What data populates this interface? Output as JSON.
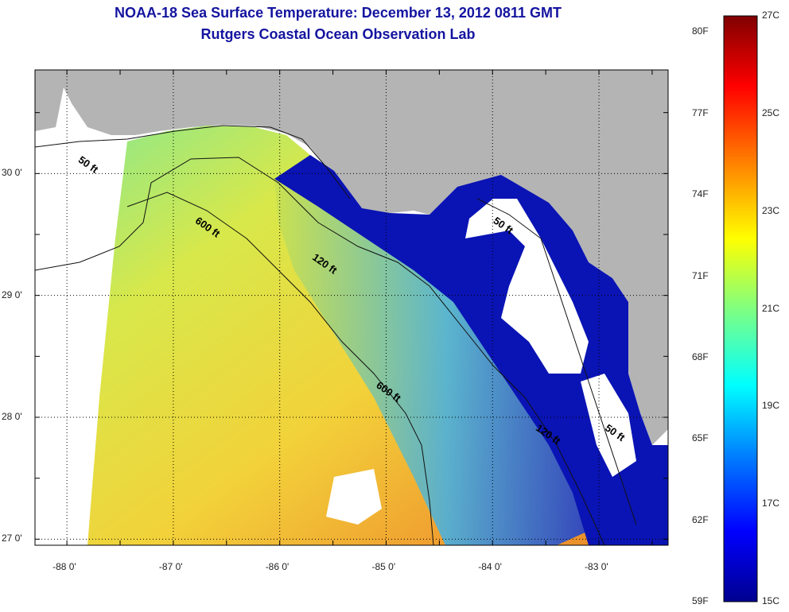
{
  "title": "NOAA-18 Sea Surface Temperature:  December 13, 2012 0811 GMT",
  "subtitle": "Rutgers Coastal Ocean Observation Lab",
  "map": {
    "lat_labels": [
      "30 0'",
      "29 0'",
      "28 0'",
      "27 0'"
    ],
    "lon_labels": [
      "-88 0'",
      "-87 0'",
      "-86 0'",
      "-85 0'",
      "-84 0'",
      "-83 0'"
    ],
    "lat_range": [
      26.95,
      30.85
    ],
    "lon_range": [
      -88.3,
      -82.35
    ],
    "isobath_labels": [
      {
        "text": "50 ft",
        "lon": -87.9,
        "lat": 30.1
      },
      {
        "text": "600 ft",
        "lon": -86.8,
        "lat": 29.6
      },
      {
        "text": "120 ft",
        "lon": -85.7,
        "lat": 29.3
      },
      {
        "text": "50 ft",
        "lon": -84.0,
        "lat": 29.6
      },
      {
        "text": "600 ft",
        "lon": -85.1,
        "lat": 28.25
      },
      {
        "text": "120 ft",
        "lon": -83.6,
        "lat": 27.9
      },
      {
        "text": "50 ft",
        "lon": -82.95,
        "lat": 27.9
      }
    ],
    "land_color": "#b4b4b4",
    "no_data_color": "#ffffff"
  },
  "colorbar": {
    "fahrenheit_labels": [
      "80F",
      "77F",
      "74F",
      "71F",
      "68F",
      "65F",
      "62F",
      "59F"
    ],
    "celsius_labels": [
      "27C",
      "25C",
      "23C",
      "21C",
      "19C",
      "17C",
      "15C"
    ],
    "colors": [
      "#00008f",
      "#0000ff",
      "#0080ff",
      "#00ffff",
      "#80ff80",
      "#ffff00",
      "#ff8000",
      "#ff0000",
      "#800000"
    ]
  }
}
